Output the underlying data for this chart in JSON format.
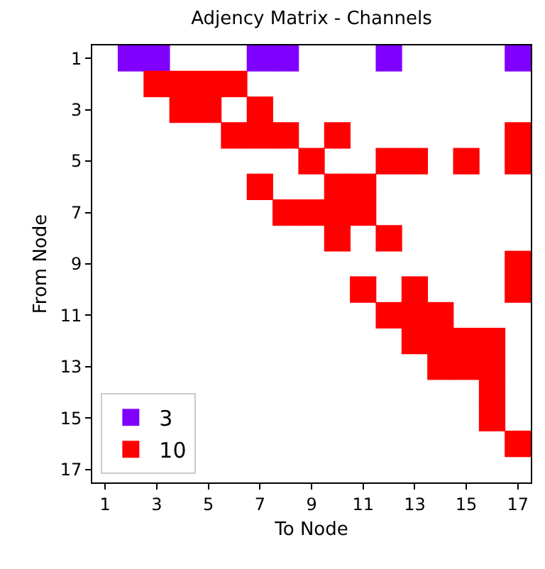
{
  "chart_data": {
    "type": "scatter",
    "title": "Adjency Matrix - Channels",
    "xlabel": "To Node",
    "ylabel": "From Node",
    "xlim": [
      0.5,
      17.5
    ],
    "xticks": [
      1,
      3,
      5,
      7,
      9,
      11,
      13,
      15,
      17
    ],
    "ylim": [
      17.5,
      0.5
    ],
    "yticks": [
      1,
      3,
      5,
      7,
      9,
      11,
      13,
      15,
      17
    ],
    "series": [
      {
        "name": "3",
        "color": "#8000ff",
        "x": [
          2,
          3,
          7,
          8,
          12,
          17
        ],
        "values": [
          1,
          1,
          1,
          1,
          1,
          1
        ]
      },
      {
        "name": "10",
        "color": "#ff0000",
        "x": [
          3,
          4,
          5,
          6,
          4,
          5,
          7,
          6,
          7,
          8,
          10,
          17,
          9,
          12,
          13,
          15,
          17,
          7,
          10,
          11,
          8,
          9,
          10,
          11,
          10,
          12,
          17,
          11,
          13,
          17,
          12,
          13,
          14,
          13,
          14,
          15,
          16,
          14,
          15,
          16,
          16,
          16,
          17
        ],
        "values": [
          2,
          2,
          2,
          2,
          3,
          3,
          3,
          4,
          4,
          4,
          4,
          4,
          5,
          5,
          5,
          5,
          5,
          6,
          6,
          6,
          7,
          7,
          7,
          7,
          8,
          8,
          9,
          10,
          10,
          10,
          11,
          11,
          11,
          12,
          12,
          12,
          12,
          13,
          13,
          13,
          14,
          15,
          16
        ]
      }
    ],
    "marker": "square",
    "grid": false,
    "legend": "bottom left"
  }
}
